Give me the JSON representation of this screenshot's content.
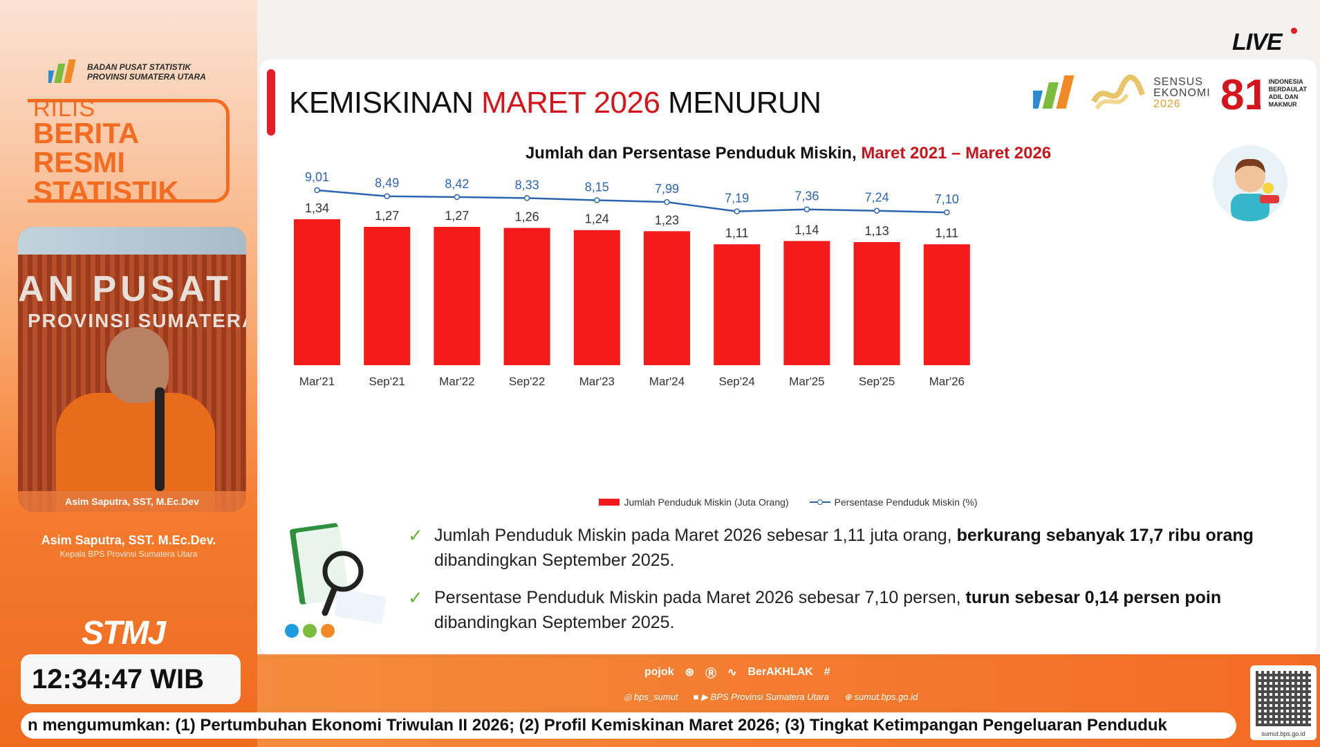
{
  "live_label": "LIVE",
  "brand": {
    "org_line1": "BADAN PUSAT STATISTIK",
    "org_line2": "PROVINSI SUMATERA UTARA",
    "rilis": "RILIS",
    "berita": "BERITA",
    "resmi": "RESMI",
    "statistik": "STATISTIK",
    "stmj": "STMJ"
  },
  "speaker": {
    "photo_sign_line1": "AN PUSAT STA",
    "photo_sign_line2": "PROVINSI SUMATERA UTA",
    "caption": "Asim Saputra, SST, M.Ec.Dev",
    "name": "Asim Saputra, SST. M.Ec.Dev.",
    "role": "Kepala BPS Provinsi Sumatera Utara"
  },
  "clock": "12:34:47 WIB",
  "slide": {
    "title_pre": "KEMISKINAN ",
    "title_hl": "MARET 2026",
    "title_post": " MENURUN",
    "sensus_line1": "SENSUS",
    "sensus_line2": "EKONOMI",
    "sensus_year": "2026",
    "indo_text": [
      "INDONESIA",
      "BERDAULAT",
      "ADIL DAN",
      "MAKMUR"
    ],
    "chart_title_pre": "Jumlah dan Persentase Penduduk Miskin, ",
    "chart_title_hl": "Maret 2021 – Maret 2026"
  },
  "chart_data": {
    "type": "bar",
    "categories": [
      "Mar'21",
      "Sep'21",
      "Mar'22",
      "Sep'22",
      "Mar'23",
      "Mar'24",
      "Sep'24",
      "Mar'25",
      "Sep'25",
      "Mar'26"
    ],
    "series": [
      {
        "name": "Jumlah Penduduk Miskin (Juta Orang)",
        "type": "bar",
        "values": [
          1.34,
          1.27,
          1.27,
          1.26,
          1.24,
          1.23,
          1.11,
          1.14,
          1.13,
          1.11
        ],
        "labels": [
          "1,34",
          "1,27",
          "1,27",
          "1,26",
          "1,24",
          "1,23",
          "1,11",
          "1,14",
          "1,13",
          "1,11"
        ],
        "color": "#f51b1b"
      },
      {
        "name": "Persentase Penduduk Miskin (%)",
        "type": "line",
        "values": [
          9.01,
          8.49,
          8.42,
          8.33,
          8.15,
          7.99,
          7.19,
          7.36,
          7.24,
          7.1
        ],
        "labels": [
          "9,01",
          "8,49",
          "8,42",
          "8,33",
          "8,15",
          "7,99",
          "7,19",
          "7,36",
          "7,24",
          "7,10"
        ],
        "color": "#2d64b2"
      }
    ],
    "grid": false,
    "legend_position": "bottom"
  },
  "bullets": [
    {
      "text": "Jumlah Penduduk Miskin pada Maret 2026 sebesar 1,11 juta orang, ",
      "bold": "berkurang sebanyak 17,7 ribu orang",
      "tail": " dibandingkan September 2025."
    },
    {
      "text": "Persentase Penduduk Miskin pada Maret 2026 sebesar 7,10 persen, ",
      "bold": "turun sebesar 0,14 persen poin",
      "tail": " dibandingkan September 2025."
    }
  ],
  "footer": {
    "logo_pojok": "pojok",
    "logo_berakhlak": "BerAKHLAK",
    "social_ig": "bps_sumut",
    "social_fb_yt": "BPS Provinsi Sumatera Utara",
    "social_web": "sumut.bps.go.id",
    "qr_text": "sumut.bps.go.id"
  },
  "ticker": "n mengumumkan: (1) Pertumbuhan Ekonomi Triwulan II 2026; (2) Profil Kemiskinan Maret 2026; (3) Tingkat Ketimpangan Pengeluaran Penduduk",
  "colors": {
    "accent": "#f36c21",
    "red": "#e31e24",
    "bar": "#f51b1b",
    "line": "#2d64b2"
  }
}
